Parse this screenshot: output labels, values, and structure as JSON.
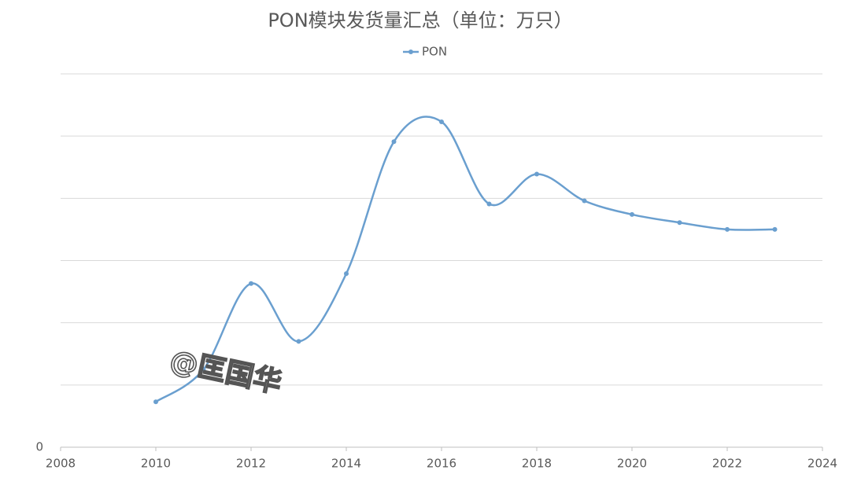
{
  "chart_data": {
    "type": "line",
    "title": "PON模块发货量汇总（单位：万只）",
    "x": [
      2010,
      2011,
      2012,
      2013,
      2014,
      2015,
      2016,
      2017,
      2018,
      2019,
      2020,
      2021,
      2022,
      2023
    ],
    "series": [
      {
        "name": "PON",
        "color": "#6a9fcf",
        "values": [
          0.73,
          1.25,
          2.63,
          1.7,
          2.79,
          4.91,
          5.23,
          3.91,
          4.39,
          3.96,
          3.74,
          3.61,
          3.5,
          3.5
        ]
      }
    ],
    "xlim": [
      2008,
      2024
    ],
    "xticks": [
      2008,
      2010,
      2012,
      2014,
      2016,
      2018,
      2020,
      2022,
      2024
    ],
    "ylim": [
      0,
      6
    ],
    "yticks": [
      0
    ],
    "ygrid": [
      1,
      2,
      3,
      4,
      5,
      6
    ],
    "grid": true,
    "legend": "top",
    "smooth": true,
    "annotations": [
      "@匡国华"
    ]
  }
}
